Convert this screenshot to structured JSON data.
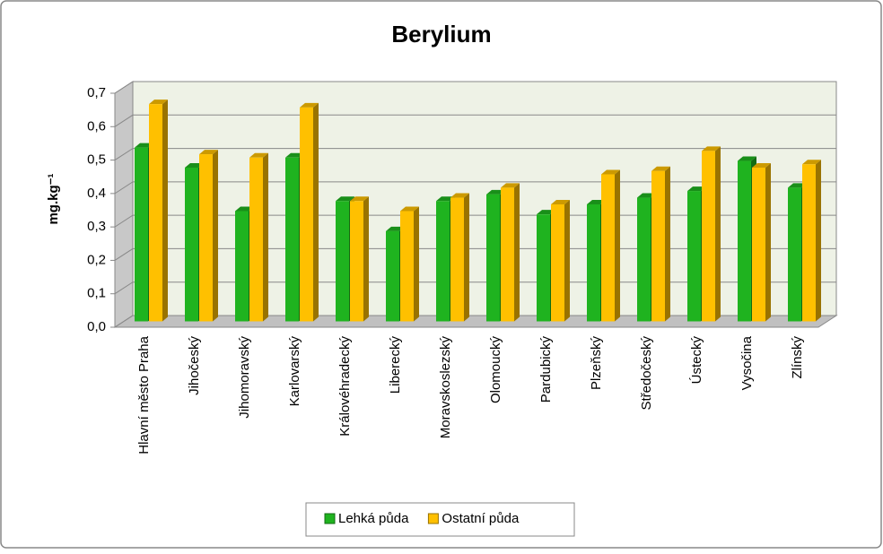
{
  "chart_data": {
    "type": "bar3d",
    "title": "Berylium",
    "y_label": "mg.kg⁻¹",
    "categories": [
      "Hlavní město Praha",
      "Jihočeský",
      "Jihomoravský",
      "Karlovarský",
      "Královéhradecký",
      "Liberecký",
      "Moravskoslezský",
      "Olomoucký",
      "Pardubický",
      "Plzeňský",
      "Středočeský",
      "Ústecký",
      "Vysočina",
      "Zlínský"
    ],
    "series": [
      {
        "name": "Lehká půda",
        "color": "#1fb31f",
        "values": [
          0.52,
          0.46,
          0.33,
          0.49,
          0.36,
          0.27,
          0.36,
          0.38,
          0.32,
          0.35,
          0.37,
          0.39,
          0.48,
          0.4
        ]
      },
      {
        "name": "Ostatní půda",
        "color": "#ffc000",
        "values": [
          0.65,
          0.5,
          0.49,
          0.64,
          0.36,
          0.33,
          0.37,
          0.4,
          0.35,
          0.44,
          0.45,
          0.51,
          0.46,
          0.47
        ]
      }
    ],
    "ylim": [
      0,
      0.7
    ],
    "yticks": [
      {
        "value": 0,
        "label": "0,0"
      },
      {
        "value": 0.1,
        "label": "0,1"
      },
      {
        "value": 0.2,
        "label": "0,2"
      },
      {
        "value": 0.3,
        "label": "0,3"
      },
      {
        "value": 0.4,
        "label": "0,4"
      },
      {
        "value": 0.5,
        "label": "0,5"
      },
      {
        "value": 0.6,
        "label": "0,6"
      },
      {
        "value": 0.7,
        "label": "0,7"
      }
    ],
    "grid": true,
    "legend": "bottom"
  }
}
